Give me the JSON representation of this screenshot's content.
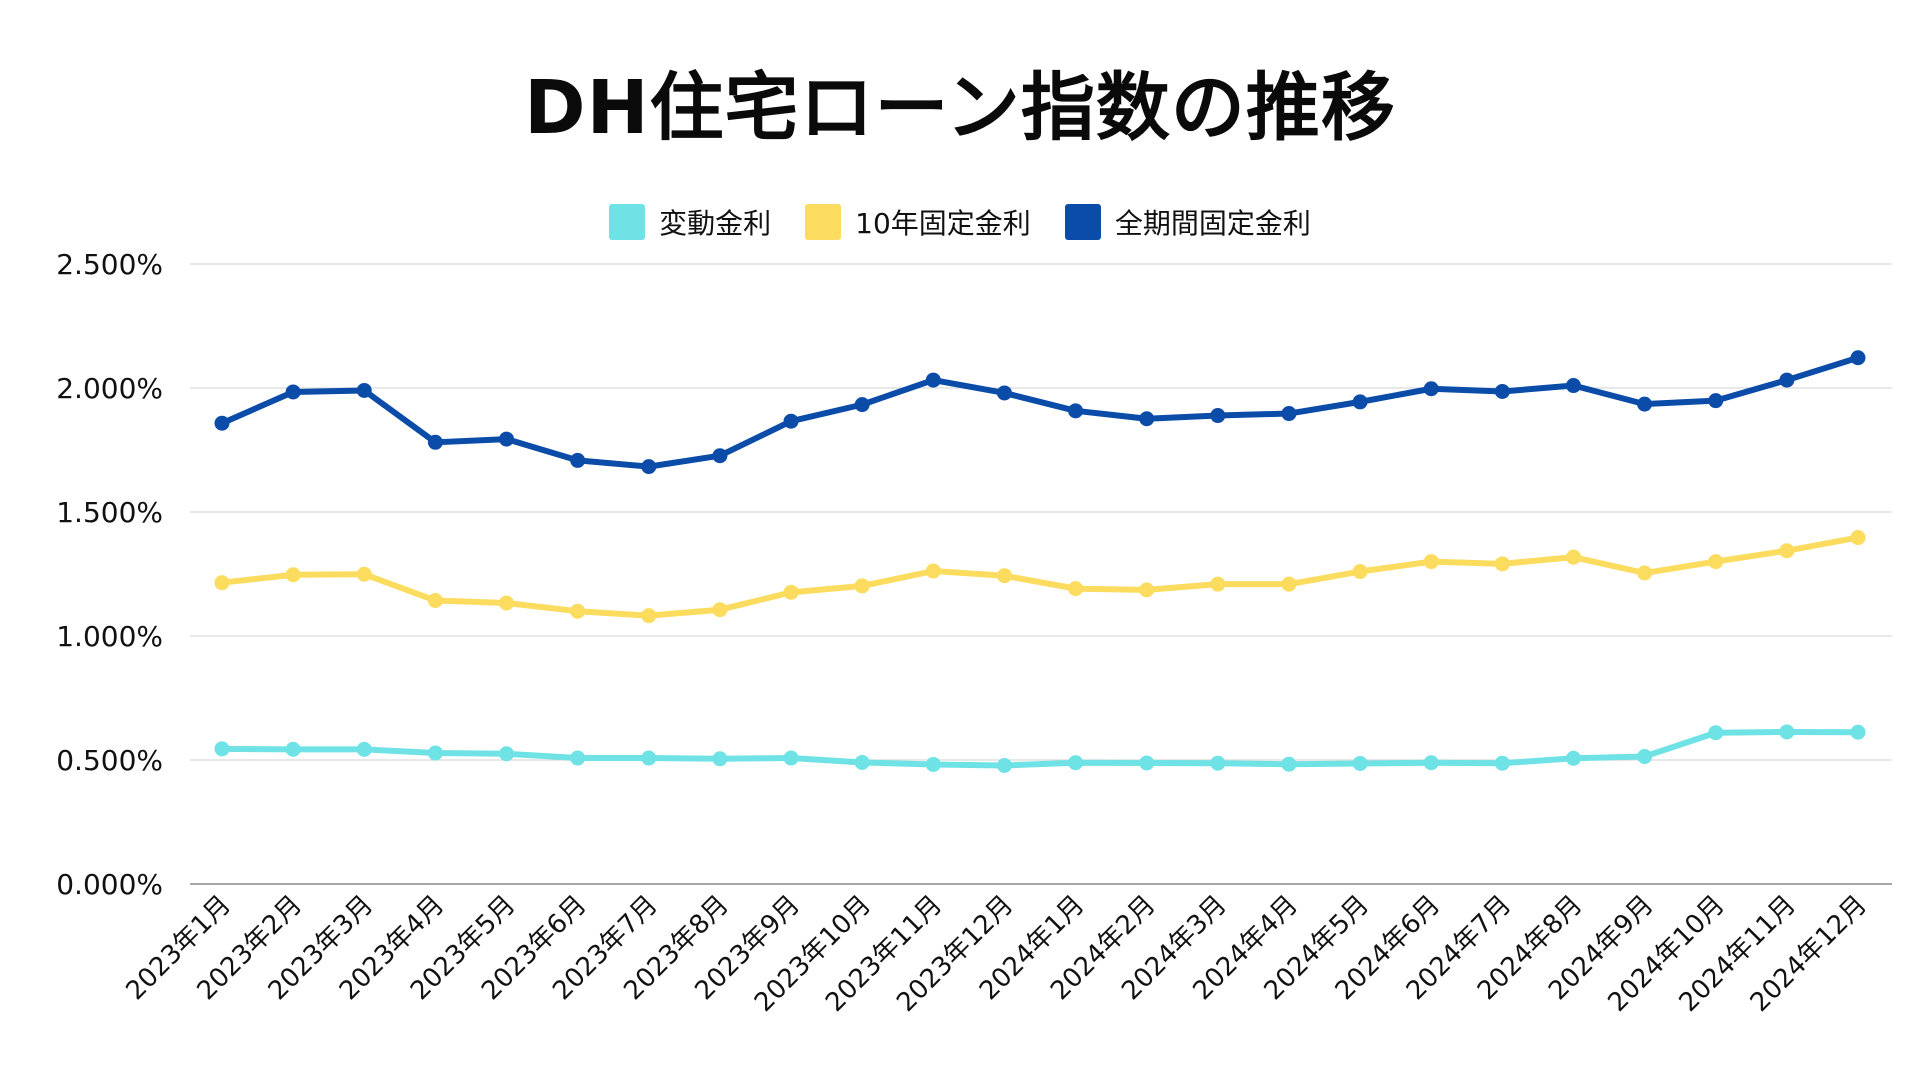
{
  "chart_data": {
    "type": "line",
    "title": "DH住宅ローン指数の推移",
    "xlabel": "",
    "ylabel": "",
    "ylim": [
      0,
      2.5
    ],
    "yticks": [
      "0.000%",
      "0.500%",
      "1.000%",
      "1.500%",
      "2.000%",
      "2.500%"
    ],
    "ytick_values": [
      0,
      0.5,
      1.0,
      1.5,
      2.0,
      2.5
    ],
    "grid": true,
    "legend_position": "top-center",
    "categories": [
      "2023年1月",
      "2023年2月",
      "2023年3月",
      "2023年4月",
      "2023年5月",
      "2023年6月",
      "2023年7月",
      "2023年8月",
      "2023年9月",
      "2023年10月",
      "2023年11月",
      "2023年12月",
      "2024年1月",
      "2024年2月",
      "2024年3月",
      "2024年4月",
      "2024年5月",
      "2024年6月",
      "2024年7月",
      "2024年8月",
      "2024年9月",
      "2024年10月",
      "2024年11月",
      "2024年12月"
    ],
    "series": [
      {
        "name": "変動金利",
        "color": "#6fe2e6",
        "values": [
          0.545,
          0.543,
          0.543,
          0.528,
          0.525,
          0.508,
          0.508,
          0.505,
          0.508,
          0.49,
          0.482,
          0.478,
          0.489,
          0.488,
          0.487,
          0.483,
          0.486,
          0.489,
          0.487,
          0.507,
          0.514,
          0.61,
          0.613,
          0.612
        ]
      },
      {
        "name": "10年固定金利",
        "color": "#fbdc5e",
        "values": [
          1.215,
          1.247,
          1.249,
          1.143,
          1.133,
          1.1,
          1.082,
          1.106,
          1.176,
          1.202,
          1.262,
          1.243,
          1.191,
          1.186,
          1.209,
          1.209,
          1.26,
          1.3,
          1.291,
          1.318,
          1.254,
          1.3,
          1.344,
          1.397
        ]
      },
      {
        "name": "全期間固定金利",
        "color": "#0b4ca8",
        "values": [
          1.858,
          1.984,
          1.99,
          1.781,
          1.794,
          1.708,
          1.683,
          1.727,
          1.866,
          1.933,
          2.032,
          1.98,
          1.908,
          1.876,
          1.889,
          1.897,
          1.944,
          1.997,
          1.986,
          2.01,
          1.935,
          1.949,
          2.032,
          2.122
        ]
      }
    ]
  }
}
